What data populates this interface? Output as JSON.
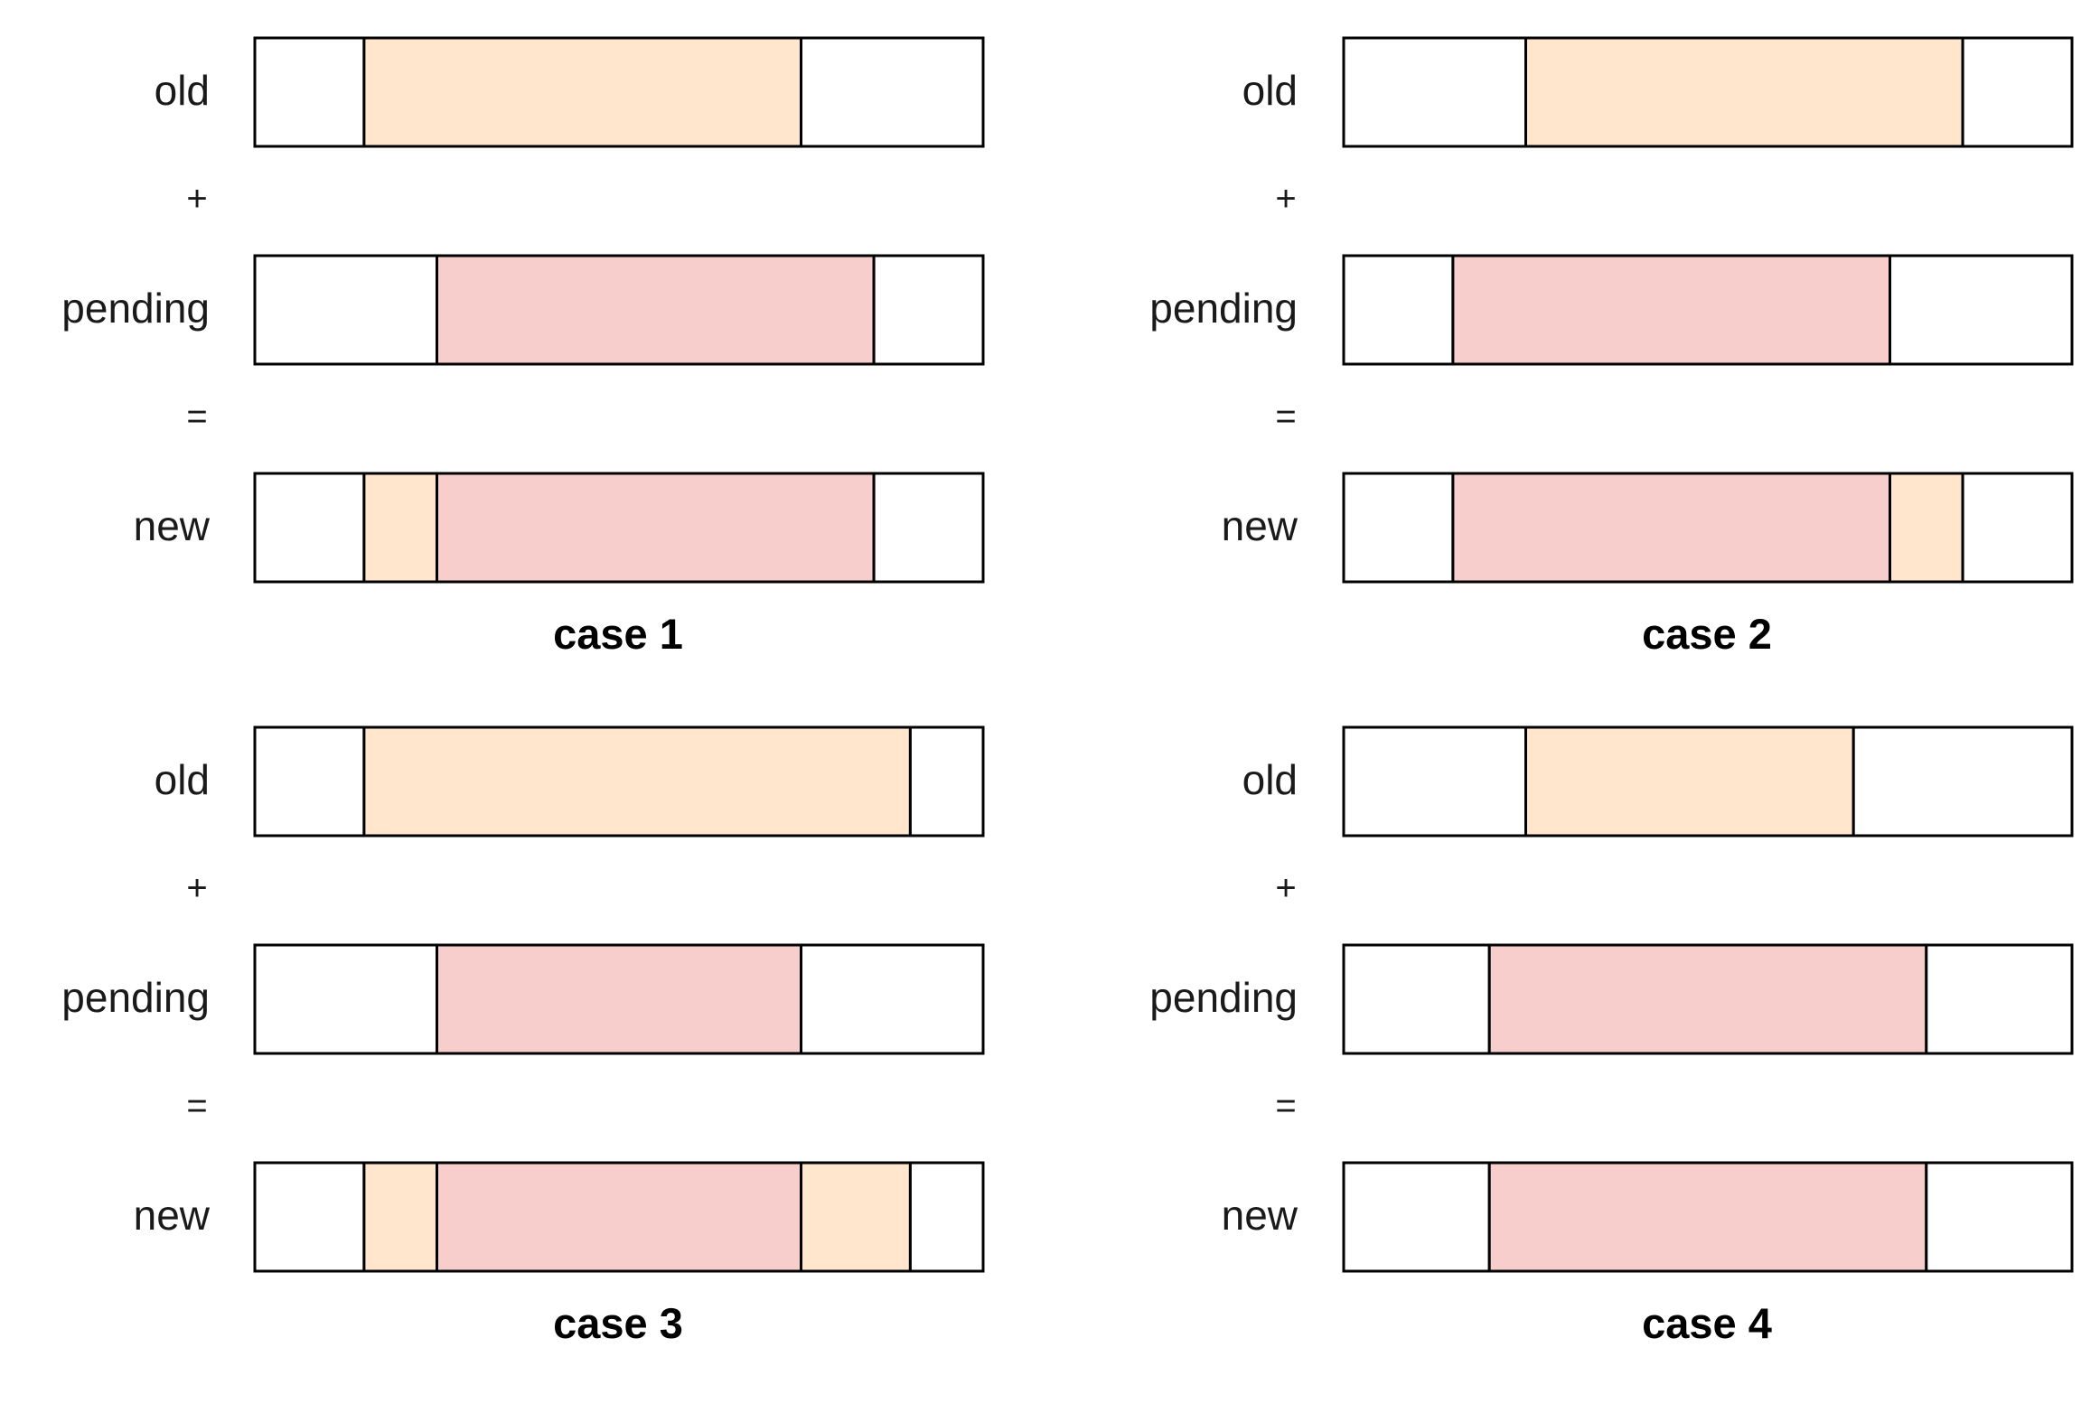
{
  "colors": {
    "old_fill": "#ffe6cc",
    "pending_fill": "#f8cecc",
    "empty_fill": "#ffffff",
    "stroke": "#000000"
  },
  "operators": {
    "plus": "+",
    "equals": "="
  },
  "cases": [
    {
      "caption": "case 1",
      "rows": [
        {
          "label": "old",
          "segments": [
            {
              "span": [
                0.0,
                0.15
              ],
              "kind": "empty"
            },
            {
              "span": [
                0.15,
                0.75
              ],
              "kind": "old"
            },
            {
              "span": [
                0.75,
                1.0
              ],
              "kind": "empty"
            }
          ]
        },
        {
          "label": "pending",
          "segments": [
            {
              "span": [
                0.0,
                0.25
              ],
              "kind": "empty"
            },
            {
              "span": [
                0.25,
                0.85
              ],
              "kind": "pending"
            },
            {
              "span": [
                0.85,
                1.0
              ],
              "kind": "empty"
            }
          ]
        },
        {
          "label": "new",
          "segments": [
            {
              "span": [
                0.0,
                0.15
              ],
              "kind": "empty"
            },
            {
              "span": [
                0.15,
                0.25
              ],
              "kind": "old"
            },
            {
              "span": [
                0.25,
                0.85
              ],
              "kind": "pending"
            },
            {
              "span": [
                0.85,
                1.0
              ],
              "kind": "empty"
            }
          ]
        }
      ]
    },
    {
      "caption": "case 2",
      "rows": [
        {
          "label": "old",
          "segments": [
            {
              "span": [
                0.0,
                0.25
              ],
              "kind": "empty"
            },
            {
              "span": [
                0.25,
                0.85
              ],
              "kind": "old"
            },
            {
              "span": [
                0.85,
                1.0
              ],
              "kind": "empty"
            }
          ]
        },
        {
          "label": "pending",
          "segments": [
            {
              "span": [
                0.0,
                0.15
              ],
              "kind": "empty"
            },
            {
              "span": [
                0.15,
                0.75
              ],
              "kind": "pending"
            },
            {
              "span": [
                0.75,
                1.0
              ],
              "kind": "empty"
            }
          ]
        },
        {
          "label": "new",
          "segments": [
            {
              "span": [
                0.0,
                0.15
              ],
              "kind": "empty"
            },
            {
              "span": [
                0.15,
                0.75
              ],
              "kind": "pending"
            },
            {
              "span": [
                0.75,
                0.85
              ],
              "kind": "old"
            },
            {
              "span": [
                0.85,
                1.0
              ],
              "kind": "empty"
            }
          ]
        }
      ]
    },
    {
      "caption": "case 3",
      "rows": [
        {
          "label": "old",
          "segments": [
            {
              "span": [
                0.0,
                0.15
              ],
              "kind": "empty"
            },
            {
              "span": [
                0.15,
                0.9
              ],
              "kind": "old"
            },
            {
              "span": [
                0.9,
                1.0
              ],
              "kind": "empty"
            }
          ]
        },
        {
          "label": "pending",
          "segments": [
            {
              "span": [
                0.0,
                0.25
              ],
              "kind": "empty"
            },
            {
              "span": [
                0.25,
                0.75
              ],
              "kind": "pending"
            },
            {
              "span": [
                0.75,
                1.0
              ],
              "kind": "empty"
            }
          ]
        },
        {
          "label": "new",
          "segments": [
            {
              "span": [
                0.0,
                0.15
              ],
              "kind": "empty"
            },
            {
              "span": [
                0.15,
                0.25
              ],
              "kind": "old"
            },
            {
              "span": [
                0.25,
                0.75
              ],
              "kind": "pending"
            },
            {
              "span": [
                0.75,
                0.9
              ],
              "kind": "old"
            },
            {
              "span": [
                0.9,
                1.0
              ],
              "kind": "empty"
            }
          ]
        }
      ]
    },
    {
      "caption": "case 4",
      "rows": [
        {
          "label": "old",
          "segments": [
            {
              "span": [
                0.0,
                0.25
              ],
              "kind": "empty"
            },
            {
              "span": [
                0.25,
                0.7
              ],
              "kind": "old"
            },
            {
              "span": [
                0.7,
                1.0
              ],
              "kind": "empty"
            }
          ]
        },
        {
          "label": "pending",
          "segments": [
            {
              "span": [
                0.0,
                0.2
              ],
              "kind": "empty"
            },
            {
              "span": [
                0.2,
                0.8
              ],
              "kind": "pending"
            },
            {
              "span": [
                0.8,
                1.0
              ],
              "kind": "empty"
            }
          ]
        },
        {
          "label": "new",
          "segments": [
            {
              "span": [
                0.0,
                0.2
              ],
              "kind": "empty"
            },
            {
              "span": [
                0.2,
                0.8
              ],
              "kind": "pending"
            },
            {
              "span": [
                0.8,
                1.0
              ],
              "kind": "empty"
            }
          ]
        }
      ]
    }
  ]
}
